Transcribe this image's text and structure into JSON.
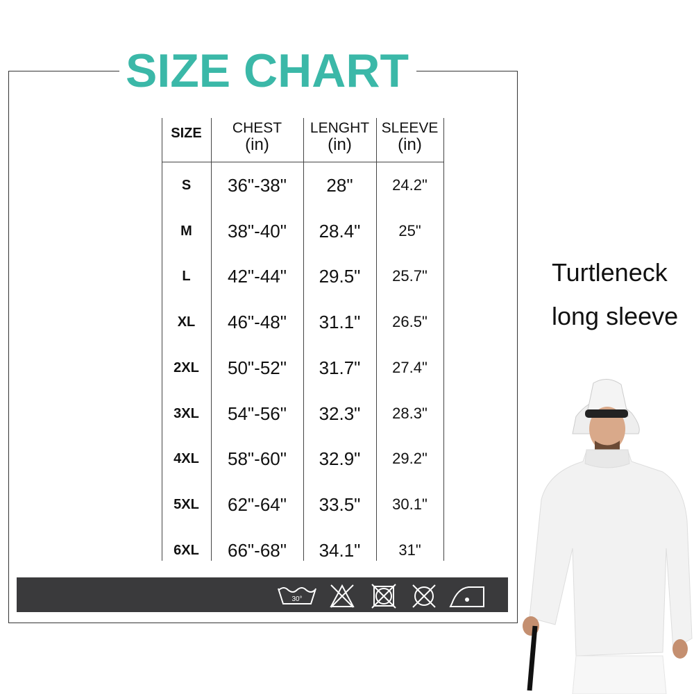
{
  "title": "SIZE CHART",
  "headers": [
    {
      "label": "SIZE",
      "unit": ""
    },
    {
      "label": "CHEST",
      "unit": "(in)"
    },
    {
      "label": "LENGHT",
      "unit": "(in)"
    },
    {
      "label": "SLEEVE",
      "unit": "(in)"
    }
  ],
  "rows": [
    {
      "size": "S",
      "chest": "36\"-38\"",
      "length": "28\"",
      "sleeve": "24.2\""
    },
    {
      "size": "M",
      "chest": "38\"-40\"",
      "length": "28.4\"",
      "sleeve": "25\""
    },
    {
      "size": "L",
      "chest": "42\"-44\"",
      "length": "29.5\"",
      "sleeve": "25.7\""
    },
    {
      "size": "XL",
      "chest": "46\"-48\"",
      "length": "31.1\"",
      "sleeve": "26.5\""
    },
    {
      "size": "2XL",
      "chest": "50\"-52\"",
      "length": "31.7\"",
      "sleeve": "27.4\""
    },
    {
      "size": "3XL",
      "chest": "54\"-56\"",
      "length": "32.3\"",
      "sleeve": "28.3\""
    },
    {
      "size": "4XL",
      "chest": "58\"-60\"",
      "length": "32.9\"",
      "sleeve": "29.2\""
    },
    {
      "size": "5XL",
      "chest": "62\"-64\"",
      "length": "33.5\"",
      "sleeve": "30.1\""
    },
    {
      "size": "6XL",
      "chest": "66\"-68\"",
      "length": "34.1\"",
      "sleeve": "31\""
    }
  ],
  "care_icons": [
    "wash-30-icon",
    "no-bleach-icon",
    "no-tumble-dry-icon",
    "no-dry-clean-icon",
    "iron-low-icon"
  ],
  "wash_temp": "30°",
  "product": {
    "line1": "Turtleneck",
    "line2": "long sleeve"
  },
  "colors": {
    "title": "#3bb8a8",
    "care_bar": "#3a3a3c"
  }
}
